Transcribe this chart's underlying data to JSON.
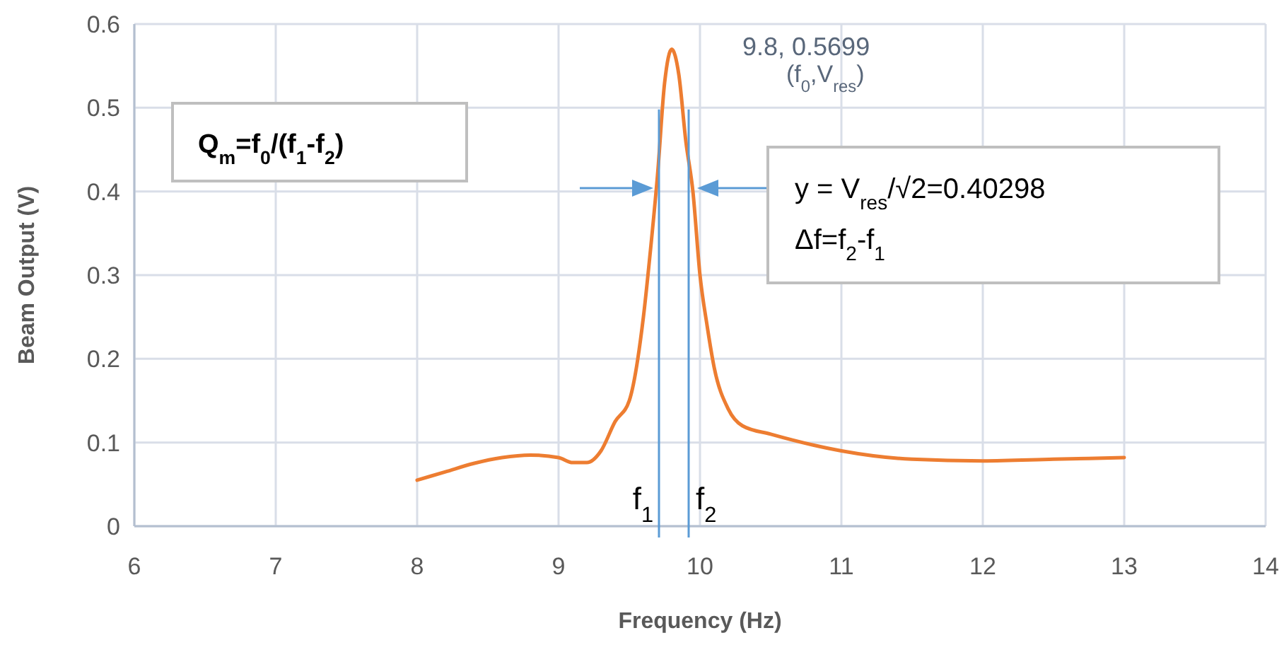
{
  "chart_data": {
    "type": "line",
    "xlabel": "Frequency (Hz)",
    "ylabel": "Beam Output (V)",
    "xlim": [
      6,
      14
    ],
    "xticks": [
      6,
      7,
      8,
      9,
      10,
      11,
      12,
      13,
      14
    ],
    "ylim": [
      0,
      0.6
    ],
    "yticks": [
      0,
      0.1,
      0.2,
      0.3,
      0.4,
      0.5,
      0.6
    ],
    "grid": true,
    "marker": "none",
    "line_style": "solid",
    "series": [
      {
        "color": "#ed7d31",
        "x": [
          8,
          8.2,
          8.4,
          8.6,
          8.8,
          9.0,
          9.1,
          9.2,
          9.3,
          9.4,
          9.5,
          9.6,
          9.65,
          9.7,
          9.75,
          9.8,
          9.85,
          9.9,
          9.95,
          10,
          10.05,
          10.1,
          10.2,
          10.3,
          10.5,
          10.8,
          11,
          11.5,
          12,
          12.5,
          13
        ],
        "values": [
          0.055,
          0.065,
          0.075,
          0.082,
          0.085,
          0.082,
          0.076,
          0.076,
          0.09,
          0.125,
          0.15,
          0.25,
          0.33,
          0.42,
          0.53,
          0.5699,
          0.54,
          0.46,
          0.4,
          0.3,
          0.24,
          0.19,
          0.14,
          0.12,
          0.11,
          0.097,
          0.09,
          0.08,
          0.078,
          0.08,
          0.082
        ]
      }
    ],
    "ref_lines": [
      {
        "axis": "x",
        "value": 9.71,
        "label": "f$_{1}$",
        "color": "#5b9bd5"
      },
      {
        "axis": "x",
        "value": 9.92,
        "label": "f$_{2}$",
        "color": "#5b9bd5"
      }
    ],
    "annotations": [
      {
        "text": "9.8, 0.5699",
        "x": 9.8,
        "y": 0.5699
      },
      "(f$_{0}$,V$_{res}$)",
      "Q$_{m}$=f$_{0}$/(f$_{1}$-f$_{2}$)",
      "y = V$_{res}$/√2=0.40298",
      "Δf=f$_{2}$-f$_{1}$"
    ]
  }
}
